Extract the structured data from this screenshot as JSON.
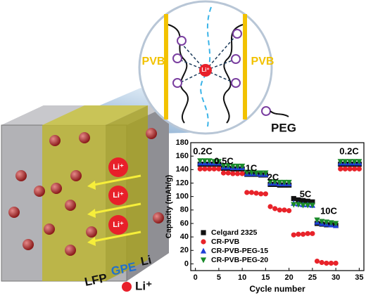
{
  "diagram": {
    "pvb_left": "PVB",
    "pvb_right": "PVB",
    "center_ion": "Li⁺",
    "peg": "PEG",
    "cube_ions": [
      "Li⁺",
      "Li⁺",
      "Li⁺"
    ],
    "lfp": "LFP",
    "gpe": "GPE",
    "li": "Li",
    "ion_legend": "Li⁺"
  },
  "chart_data": {
    "type": "scatter",
    "x_label": "Cycle number",
    "y_label": "Capacity (mAh/g)",
    "annotations": [
      "0.2C",
      "0.5C",
      "1C",
      "2C",
      "5C",
      "10C",
      "0.2C"
    ],
    "x": [
      1,
      2,
      3,
      4,
      5,
      6,
      7,
      8,
      9,
      10,
      11,
      12,
      13,
      14,
      15,
      16,
      17,
      18,
      19,
      20,
      21,
      22,
      23,
      24,
      25,
      26,
      27,
      28,
      29,
      30,
      31,
      32,
      33,
      34,
      35
    ],
    "series": [
      {
        "name": "Celgard 2325",
        "color": "#111111",
        "marker": "square",
        "values": [
          148,
          148,
          148,
          148,
          148,
          142,
          142,
          141,
          141,
          141,
          133,
          133,
          133,
          132,
          132,
          118,
          118,
          117,
          117,
          117,
          97,
          95,
          94,
          93,
          92,
          60,
          59,
          58,
          58,
          57,
          148,
          148,
          148,
          148,
          148
        ]
      },
      {
        "name": "CR-PVB",
        "color": "#e8232a",
        "marker": "circle",
        "values": [
          141,
          141,
          141,
          141,
          141,
          135,
          135,
          134,
          134,
          134,
          106,
          106,
          105,
          104,
          104,
          85,
          82,
          80,
          80,
          79,
          43,
          44,
          44,
          45,
          45,
          4,
          2,
          1,
          1,
          1,
          141,
          141,
          141,
          141,
          141
        ]
      },
      {
        "name": "CR-PVB-PEG-15",
        "color": "#1f3fd8",
        "marker": "triangle",
        "values": [
          150,
          150,
          150,
          150,
          150,
          144,
          144,
          143,
          143,
          143,
          134,
          134,
          134,
          133,
          133,
          120,
          120,
          119,
          119,
          119,
          90,
          89,
          88,
          88,
          87,
          62,
          60,
          59,
          58,
          57,
          150,
          150,
          150,
          150,
          150
        ]
      },
      {
        "name": "CR-PVB-PEG-20",
        "color": "#1a8a2a",
        "marker": "triangle-down",
        "values": [
          153,
          153,
          153,
          152,
          152,
          146,
          146,
          145,
          145,
          145,
          136,
          136,
          135,
          135,
          135,
          122,
          122,
          121,
          121,
          121,
          88,
          88,
          87,
          87,
          87,
          65,
          63,
          62,
          61,
          60,
          152,
          152,
          152,
          152,
          152
        ]
      }
    ],
    "xlim": [
      -1,
      36
    ],
    "ylim": [
      -10,
      180
    ],
    "xticks": [
      0,
      5,
      10,
      15,
      20,
      25,
      30,
      35
    ],
    "yticks": [
      0,
      20,
      40,
      60,
      80,
      100,
      120,
      140,
      160,
      180
    ],
    "grid": false
  }
}
